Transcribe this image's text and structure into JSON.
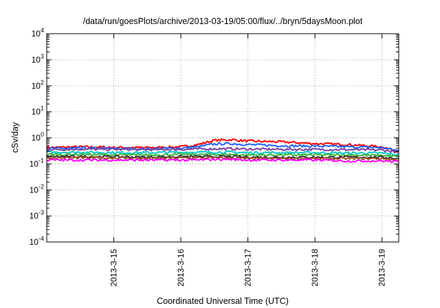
{
  "chart_data": {
    "type": "line",
    "title": "/data/run/goesPlots/archive/2013-03-19/05:00/flux/../bryn/5daysMoon.plot",
    "xlabel": "Coordinated Universal Time (UTC)",
    "ylabel": "cSv/day",
    "yscale": "log",
    "ylim": [
      0.0001,
      10000
    ],
    "xlim": [
      "2013-03-14T00:00",
      "2013-03-19T06:00"
    ],
    "y_ticks": [
      {
        "base": "10",
        "exp": "4"
      },
      {
        "base": "10",
        "exp": "3"
      },
      {
        "base": "10",
        "exp": "2"
      },
      {
        "base": "10",
        "exp": "1"
      },
      {
        "base": "10",
        "exp": "0"
      },
      {
        "base": "10",
        "exp": "-1"
      },
      {
        "base": "10",
        "exp": "-2"
      },
      {
        "base": "10",
        "exp": "-3"
      },
      {
        "base": "10",
        "exp": "-4"
      }
    ],
    "x_ticks": [
      "2013-3-15",
      "2013-3-16",
      "2013-3-17",
      "2013-3-18",
      "2013-3-19"
    ],
    "grid": true,
    "legend": "none",
    "x": [
      "2013-03-14T00:00",
      "2013-03-14T12:00",
      "2013-03-15T00:00",
      "2013-03-15T12:00",
      "2013-03-16T00:00",
      "2013-03-16T06:00",
      "2013-03-16T12:00",
      "2013-03-16T18:00",
      "2013-03-17T00:00",
      "2013-03-17T12:00",
      "2013-03-18T00:00",
      "2013-03-18T12:00",
      "2013-03-19T00:00",
      "2013-03-19T06:00"
    ],
    "series": [
      {
        "color": "#ff0000",
        "values": [
          0.42,
          0.45,
          0.43,
          0.42,
          0.45,
          0.55,
          0.8,
          0.85,
          0.75,
          0.7,
          0.6,
          0.55,
          0.45,
          0.3
        ]
      },
      {
        "color": "#1e64ff",
        "values": [
          0.38,
          0.4,
          0.39,
          0.38,
          0.4,
          0.45,
          0.58,
          0.6,
          0.55,
          0.5,
          0.48,
          0.45,
          0.42,
          0.32
        ]
      },
      {
        "color": "#7b3f9e",
        "values": [
          0.35,
          0.37,
          0.36,
          0.35,
          0.36,
          0.37,
          0.38,
          0.38,
          0.37,
          0.36,
          0.36,
          0.35,
          0.34,
          0.28
        ]
      },
      {
        "color": "#00c8c8",
        "values": [
          0.28,
          0.28,
          0.27,
          0.27,
          0.28,
          0.28,
          0.28,
          0.28,
          0.27,
          0.27,
          0.27,
          0.26,
          0.26,
          0.22
        ]
      },
      {
        "color": "#3cb43c",
        "values": [
          0.23,
          0.23,
          0.22,
          0.22,
          0.23,
          0.23,
          0.23,
          0.23,
          0.22,
          0.22,
          0.22,
          0.22,
          0.21,
          0.19
        ]
      },
      {
        "color": "#303030",
        "values": [
          0.19,
          0.19,
          0.19,
          0.18,
          0.19,
          0.19,
          0.19,
          0.19,
          0.18,
          0.18,
          0.18,
          0.18,
          0.18,
          0.16
        ]
      },
      {
        "color": "#a05028",
        "values": [
          0.17,
          0.17,
          0.17,
          0.16,
          0.17,
          0.17,
          0.17,
          0.17,
          0.16,
          0.16,
          0.16,
          0.16,
          0.16,
          0.14
        ]
      },
      {
        "color": "#ff00ff",
        "values": [
          0.14,
          0.14,
          0.14,
          0.14,
          0.14,
          0.14,
          0.15,
          0.15,
          0.14,
          0.14,
          0.14,
          0.13,
          0.13,
          0.12
        ]
      }
    ]
  }
}
